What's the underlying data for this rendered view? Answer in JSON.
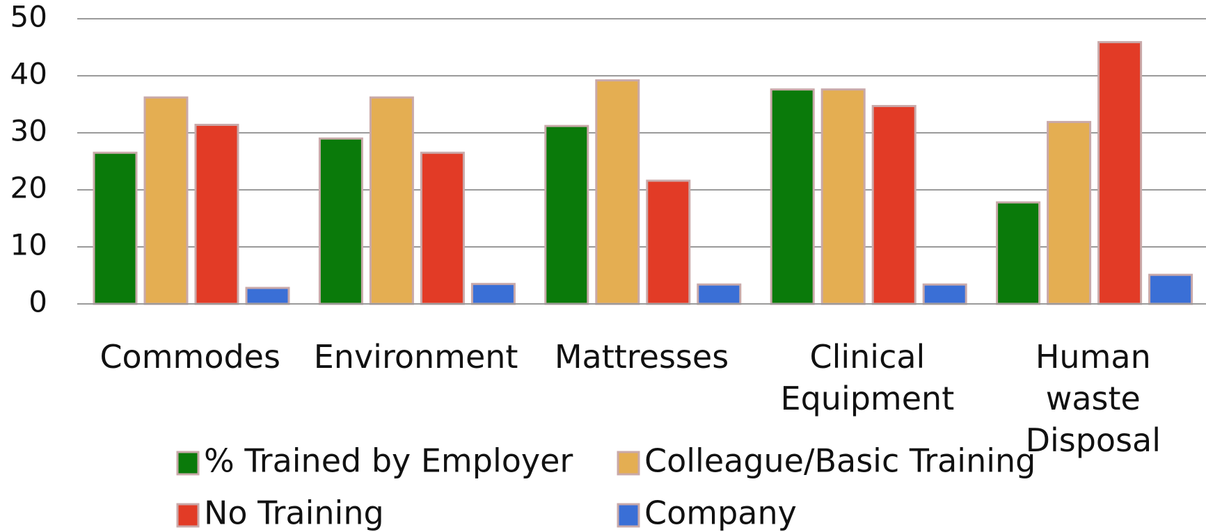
{
  "chart_data": {
    "type": "bar",
    "categories": [
      "Commodes",
      "Environment",
      "Mattresses",
      "Clinical Equipment",
      "Human waste Disposal"
    ],
    "series": [
      {
        "name": "% Trained by Employer",
        "color": "#0a7a0a",
        "values": [
          26.5,
          29,
          31.2,
          37.6,
          17.8
        ]
      },
      {
        "name": "Colleague/Basic Training",
        "color": "#e4ae52",
        "values": [
          36.2,
          36.2,
          39.2,
          37.6,
          31.9
        ]
      },
      {
        "name": "No Training",
        "color": "#e23b26",
        "values": [
          31.4,
          26.5,
          21.6,
          34.7,
          45.9
        ]
      },
      {
        "name": "Company",
        "color": "#3a6fd6",
        "values": [
          2.8,
          3.5,
          3.4,
          3.4,
          5.1
        ]
      }
    ],
    "ylim": [
      0,
      50
    ],
    "yticks": [
      0,
      10,
      20,
      30,
      40,
      50
    ],
    "grid": true,
    "legend": "bottom"
  }
}
